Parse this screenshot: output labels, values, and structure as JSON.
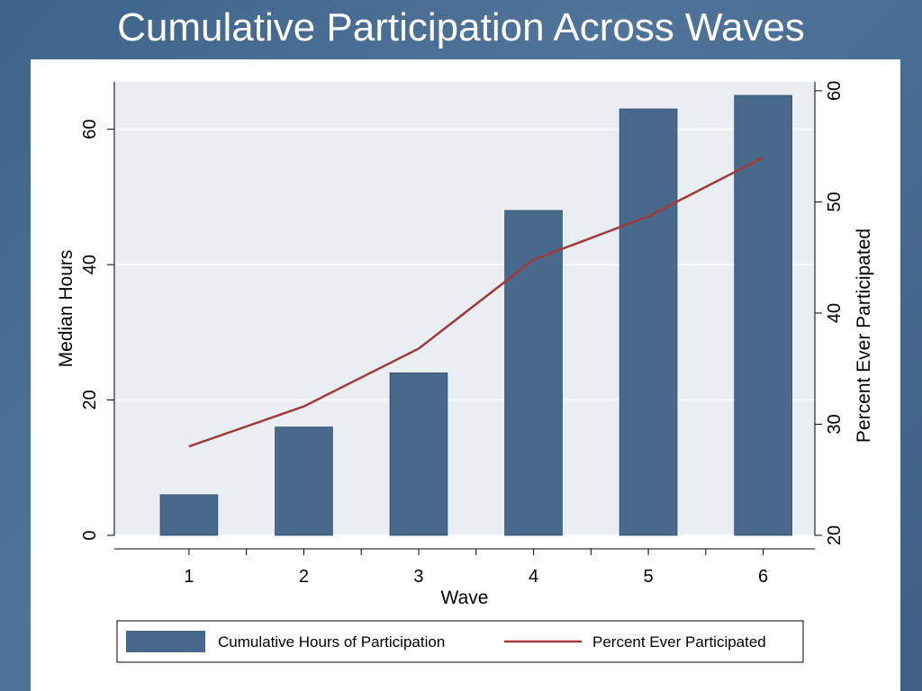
{
  "title": "Cumulative Participation Across Waves",
  "colors": {
    "bar": "#48698c",
    "line": "#a13a3a",
    "plot_bg": "#e9eef2",
    "panel_bg": "#ffffff"
  },
  "chart_data": {
    "type": "bar",
    "x": [
      1,
      2,
      3,
      4,
      5,
      6
    ],
    "xlabel": "Wave",
    "ylabel": "Median Hours",
    "ylabel_right": "Percent Ever Participated",
    "ylim": [
      0,
      67
    ],
    "ylim_right": [
      20,
      60.8
    ],
    "yticks": [
      0,
      20,
      40,
      60
    ],
    "yticks_right": [
      20,
      30,
      40,
      50,
      60
    ],
    "grid": true,
    "legend_position": "bottom",
    "series": [
      {
        "name": "Cumulative Hours of Participation",
        "type": "bar",
        "axis": "left",
        "values": [
          6,
          16,
          24,
          48,
          63,
          65
        ]
      },
      {
        "name": "Percent Ever Participated",
        "type": "line",
        "axis": "right",
        "values": [
          28,
          31.6,
          36.8,
          44.8,
          48.7,
          54
        ]
      }
    ]
  }
}
